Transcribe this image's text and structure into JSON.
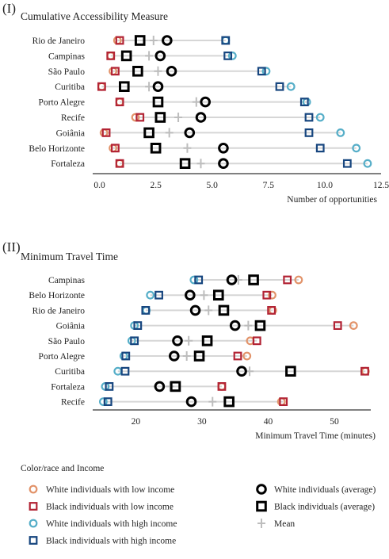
{
  "colors": {
    "white_low": "#e2936a",
    "black_low": "#b22334",
    "white_high": "#56aec8",
    "black_high": "#17467f",
    "average": "#000000",
    "mean": "#bdbdbd",
    "segment": "#d6d6d6"
  },
  "chart_data": [
    {
      "type": "dot-range",
      "panel_tag": "(I)",
      "title": "Cumulative Accessibility Measure",
      "xlabel": "Number of opportunities",
      "xlim": [
        -0.3,
        12.5
      ],
      "xticks": [
        "0.0",
        "2.5",
        "5.0",
        "7.5",
        "10.0",
        "12.5"
      ],
      "xtick_values": [
        0,
        2.5,
        5,
        7.5,
        10,
        12.5
      ],
      "categories": [
        "Rio de Janeiro",
        "Campinas",
        "São Paulo",
        "Curitiba",
        "Porto Alegre",
        "Recife",
        "Goiânia",
        "Belo Horizonte",
        "Fortaleza"
      ],
      "series": [
        {
          "name": "White individuals with low income",
          "key": "white_low",
          "values": [
            0.8,
            0.5,
            0.6,
            0.1,
            0.9,
            1.6,
            0.2,
            0.6,
            0.9
          ]
        },
        {
          "name": "Black individuals with low income",
          "key": "black_low",
          "values": [
            0.9,
            0.5,
            0.7,
            0.1,
            0.9,
            1.8,
            0.3,
            0.7,
            0.9
          ]
        },
        {
          "name": "White individuals with high income",
          "key": "white_high",
          "values": [
            5.6,
            5.9,
            7.4,
            8.5,
            9.2,
            9.8,
            10.7,
            11.4,
            11.9
          ]
        },
        {
          "name": "Black individuals with high income",
          "key": "black_high",
          "values": [
            5.6,
            5.7,
            7.2,
            8.0,
            9.1,
            9.3,
            9.3,
            9.8,
            11.0
          ]
        },
        {
          "name": "White individuals (average)",
          "key": "white_avg",
          "values": [
            3.0,
            2.7,
            3.2,
            2.6,
            4.7,
            4.5,
            4.0,
            5.5,
            5.5
          ]
        },
        {
          "name": "Black individuals (average)",
          "key": "black_avg",
          "values": [
            1.8,
            1.2,
            1.7,
            1.1,
            2.6,
            2.7,
            2.2,
            2.5,
            3.8
          ]
        },
        {
          "name": "Mean",
          "key": "mean",
          "values": [
            2.4,
            2.2,
            2.6,
            2.2,
            4.3,
            3.5,
            3.1,
            3.9,
            4.5
          ]
        }
      ]
    },
    {
      "type": "dot-range",
      "panel_tag": "(II)",
      "title": "Minimum Travel Time",
      "xlabel": "Minimum Travel Time (minutes)",
      "xlim": [
        13.5,
        55.5
      ],
      "xticks": [
        "20",
        "30",
        "40",
        "50"
      ],
      "xtick_values": [
        20,
        30,
        40,
        50
      ],
      "categories": [
        "Campinas",
        "Belo Horizonte",
        "Rio de Janeiro",
        "Goiânia",
        "São Paulo",
        "Porto Alegre",
        "Curitiba",
        "Fortaleza",
        "Recife"
      ],
      "series": [
        {
          "name": "White individuals with low income",
          "key": "white_low",
          "values": [
            44.6,
            40.6,
            40.7,
            52.9,
            37.3,
            36.8,
            54.7,
            33.0,
            42.0
          ]
        },
        {
          "name": "Black individuals with low income",
          "key": "black_low",
          "values": [
            42.9,
            39.8,
            40.5,
            50.5,
            38.3,
            35.4,
            54.6,
            33.0,
            42.3
          ]
        },
        {
          "name": "White individuals with high income",
          "key": "white_high",
          "values": [
            28.8,
            22.2,
            21.6,
            19.8,
            19.4,
            18.2,
            17.3,
            15.4,
            15.1
          ]
        },
        {
          "name": "Black individuals with high income",
          "key": "black_high",
          "values": [
            29.5,
            23.5,
            21.5,
            20.3,
            19.8,
            18.5,
            18.4,
            16.0,
            15.8
          ]
        },
        {
          "name": "White individuals (average)",
          "key": "white_avg",
          "values": [
            34.5,
            28.2,
            29.0,
            35.0,
            26.3,
            25.8,
            36.0,
            23.6,
            28.4
          ]
        },
        {
          "name": "Black individuals (average)",
          "key": "black_avg",
          "values": [
            37.8,
            32.5,
            33.3,
            38.8,
            30.8,
            29.6,
            43.4,
            26.0,
            34.1
          ]
        },
        {
          "name": "Mean",
          "key": "mean",
          "values": [
            35.5,
            30.3,
            31.0,
            37.0,
            28.0,
            27.7,
            37.2,
            25.2,
            31.6
          ]
        }
      ]
    }
  ],
  "legend": {
    "title": "Color/race and Income",
    "items": [
      {
        "key": "white_low",
        "label": "White individuals with low income"
      },
      {
        "key": "white_avg",
        "label": "White individuals (average)"
      },
      {
        "key": "black_low",
        "label": "Black individuals with low income"
      },
      {
        "key": "black_avg",
        "label": "Black individuals (average)"
      },
      {
        "key": "white_high",
        "label": "White individuals with high income"
      },
      {
        "key": "mean",
        "label": "Mean"
      },
      {
        "key": "black_high",
        "label": "Black individuals with high income"
      }
    ]
  }
}
